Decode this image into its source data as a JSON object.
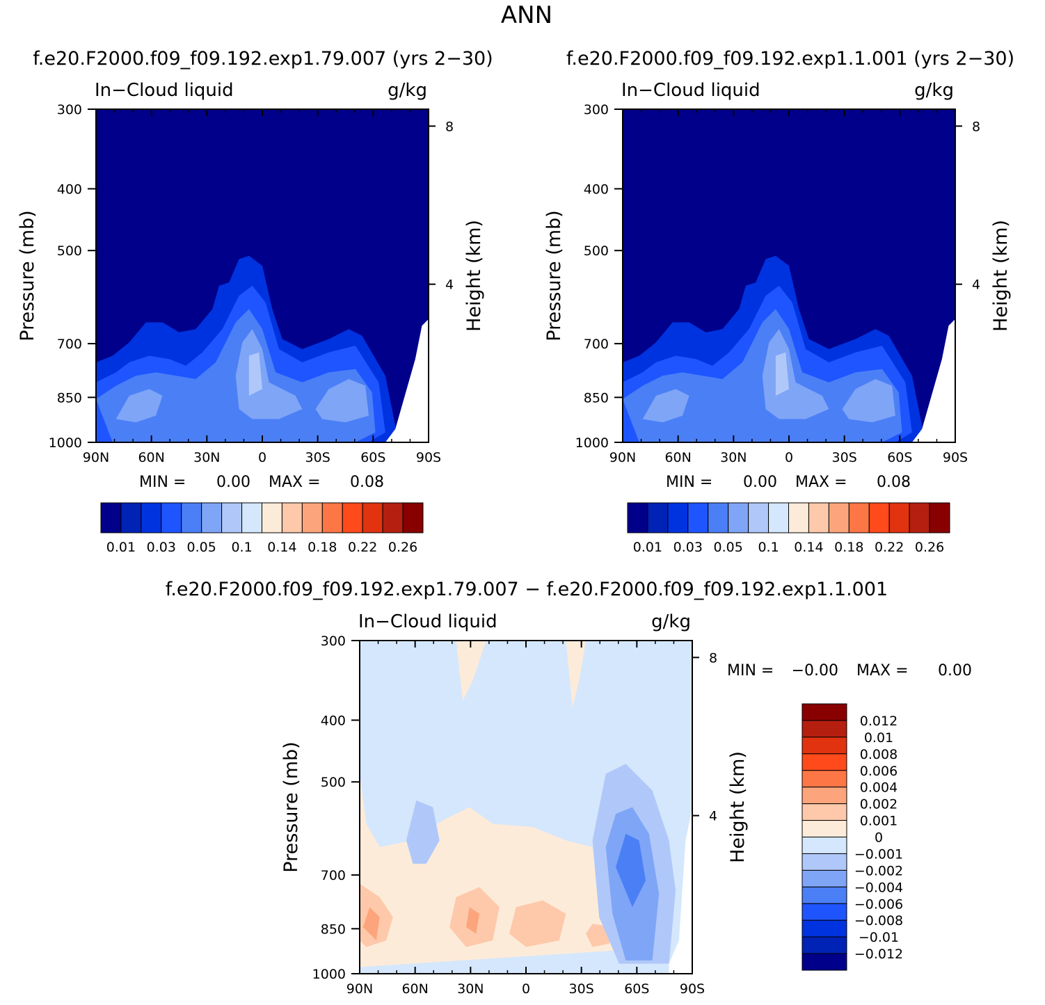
{
  "figure": {
    "season": "ANN",
    "case1_title": "f.e20.F2000.f09_f09.192.exp1.79.007 (yrs 2−30)",
    "case2_title": "f.e20.F2000.f09_f09.192.exp1.1.001 (yrs 2−30)",
    "diff_title": "f.e20.F2000.f09_f09.192.exp1.79.007 − f.e20.F2000.f09_f09.192.exp1.1.001"
  },
  "chart_data": [
    {
      "type": "heatmap",
      "name": "case1",
      "variable": "In−Cloud liquid",
      "units": "g/kg",
      "ylabel": "Pressure (mb)",
      "y2label": "Height (km)",
      "x_ticks": [
        "90N",
        "60N",
        "30N",
        "0",
        "30S",
        "60S",
        "90S"
      ],
      "x_tick_values": [
        90,
        60,
        30,
        0,
        -30,
        -60,
        -90
      ],
      "y_ticks": [
        300,
        400,
        500,
        700,
        850,
        1000
      ],
      "y2_ticks": [
        8,
        4
      ],
      "min_label": "MIN =",
      "min_value": "0.00",
      "max_label": "MAX =",
      "max_value": "0.08",
      "levels": [
        "0.01",
        "0.03",
        "0.05",
        "0.1",
        "0.14",
        "0.18",
        "0.22",
        "0.26"
      ],
      "colors": [
        "#00008a",
        "#0022b5",
        "#0033e0",
        "#1f55ff",
        "#4b7ff6",
        "#7fa5f7",
        "#b0c8f9",
        "#d5e7fc",
        "#fdebd9",
        "#fdc9aa",
        "#fca57c",
        "#fd7646",
        "#ff4a1c",
        "#e13310",
        "#b51f0f",
        "#890000"
      ]
    },
    {
      "type": "heatmap",
      "name": "case2",
      "variable": "In−Cloud liquid",
      "units": "g/kg",
      "ylabel": "Pressure (mb)",
      "y2label": "Height (km)",
      "x_ticks": [
        "90N",
        "60N",
        "30N",
        "0",
        "30S",
        "60S",
        "90S"
      ],
      "x_tick_values": [
        90,
        60,
        30,
        0,
        -30,
        -60,
        -90
      ],
      "y_ticks": [
        300,
        400,
        500,
        700,
        850,
        1000
      ],
      "y2_ticks": [
        8,
        4
      ],
      "min_label": "MIN =",
      "min_value": "0.00",
      "max_label": "MAX =",
      "max_value": "0.08",
      "levels": [
        "0.01",
        "0.03",
        "0.05",
        "0.1",
        "0.14",
        "0.18",
        "0.22",
        "0.26"
      ],
      "colors": [
        "#00008a",
        "#0022b5",
        "#0033e0",
        "#1f55ff",
        "#4b7ff6",
        "#7fa5f7",
        "#b0c8f9",
        "#d5e7fc",
        "#fdebd9",
        "#fdc9aa",
        "#fca57c",
        "#fd7646",
        "#ff4a1c",
        "#e13310",
        "#b51f0f",
        "#890000"
      ]
    },
    {
      "type": "heatmap",
      "name": "difference",
      "variable": "In−Cloud liquid",
      "units": "g/kg",
      "ylabel": "Pressure (mb)",
      "y2label": "Height (km)",
      "x_ticks": [
        "90N",
        "60N",
        "30N",
        "0",
        "30S",
        "60S",
        "90S"
      ],
      "x_tick_values": [
        90,
        60,
        30,
        0,
        -30,
        -60,
        -90
      ],
      "y_ticks": [
        300,
        400,
        500,
        700,
        850,
        1000
      ],
      "y2_ticks": [
        8,
        4
      ],
      "min_label": "MIN =",
      "min_value": "−0.00",
      "max_label": "MAX =",
      "max_value": "0.00",
      "levels": [
        "0.012",
        "0.01",
        "0.008",
        "0.006",
        "0.004",
        "0.002",
        "0.001",
        "0",
        "−0.001",
        "−0.002",
        "−0.004",
        "−0.006",
        "−0.008",
        "−0.01",
        "−0.012"
      ],
      "colors": [
        "#890000",
        "#b51f0f",
        "#e13310",
        "#ff4a1c",
        "#fd7646",
        "#fca57c",
        "#fdc9aa",
        "#fdebd9",
        "#d5e7fc",
        "#b0c8f9",
        "#7fa5f7",
        "#4b7ff6",
        "#1f55ff",
        "#0033e0",
        "#0022b5",
        "#00008a"
      ]
    }
  ]
}
